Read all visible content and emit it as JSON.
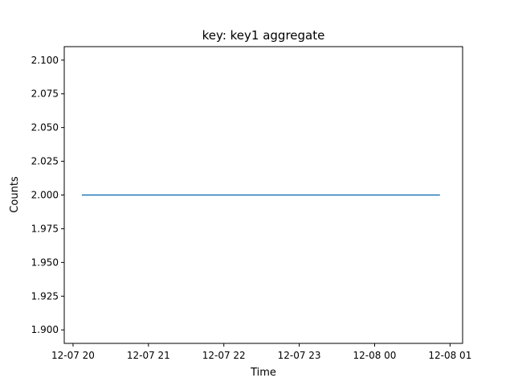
{
  "chart_data": {
    "type": "line",
    "title": "key: key1 aggregate",
    "xlabel": "Time",
    "ylabel": "Counts",
    "x_type": "time",
    "xlim": [
      "2023-12-07T19:53",
      "2023-12-08T01:10"
    ],
    "ylim": [
      1.89,
      2.11
    ],
    "x_ticks": [
      {
        "value": "2023-12-07T20:00",
        "label": "12-07 20"
      },
      {
        "value": "2023-12-07T21:00",
        "label": "12-07 21"
      },
      {
        "value": "2023-12-07T22:00",
        "label": "12-07 22"
      },
      {
        "value": "2023-12-07T23:00",
        "label": "12-07 23"
      },
      {
        "value": "2023-12-08T00:00",
        "label": "12-08 00"
      },
      {
        "value": "2023-12-08T01:00",
        "label": "12-08 01"
      }
    ],
    "y_ticks": [
      {
        "value": 1.9,
        "label": "1.900"
      },
      {
        "value": 1.925,
        "label": "1.925"
      },
      {
        "value": 1.95,
        "label": "1.950"
      },
      {
        "value": 1.975,
        "label": "1.975"
      },
      {
        "value": 2.0,
        "label": "2.000"
      },
      {
        "value": 2.025,
        "label": "2.025"
      },
      {
        "value": 2.05,
        "label": "2.050"
      },
      {
        "value": 2.075,
        "label": "2.075"
      },
      {
        "value": 2.1,
        "label": "2.100"
      }
    ],
    "series": [
      {
        "color": "#1f77b4",
        "points": [
          {
            "x": "2023-12-07T20:07",
            "y": 2.0
          },
          {
            "x": "2023-12-08T00:52",
            "y": 2.0
          }
        ]
      }
    ],
    "grid": false,
    "legend": "none"
  }
}
